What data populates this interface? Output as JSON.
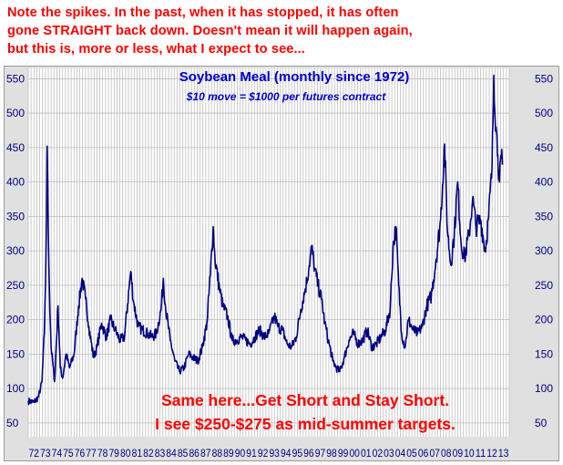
{
  "note": {
    "lines": [
      "Note the spikes. In the past, when it has stopped, it has often",
      "gone STRAIGHT back down. Doesn't mean it will happen again,",
      "but this is, more or less, what I expect to see..."
    ]
  },
  "chart_data": {
    "type": "line",
    "title": "Soybean Meal (monthly since 1972)",
    "subtitle": "$10 move = $1000 per futures contract",
    "annotations": [
      "Same here...Get Short and Stay Short.",
      "I see $250-$275 as mid-summer targets."
    ],
    "y_ticks": [
      50,
      100,
      150,
      200,
      250,
      300,
      350,
      400,
      450,
      500,
      550
    ],
    "ylim": [
      30,
      565
    ],
    "xlim": [
      1972,
      2014
    ],
    "x_tick_labels": [
      "72",
      "73",
      "74",
      "75",
      "76",
      "77",
      "78",
      "79",
      "80",
      "81",
      "82",
      "83",
      "84",
      "85",
      "86",
      "87",
      "88",
      "89",
      "90",
      "91",
      "92",
      "93",
      "94",
      "95",
      "96",
      "97",
      "98",
      "99",
      "00",
      "01",
      "02",
      "03",
      "04",
      "05",
      "06",
      "07",
      "08",
      "09",
      "10",
      "11",
      "12",
      "13"
    ],
    "grid": true,
    "series": [
      {
        "color": "#000080",
        "points": [
          [
            1972.0,
            82
          ],
          [
            1972.5,
            80
          ],
          [
            1972.9,
            88
          ],
          [
            1973.2,
            110
          ],
          [
            1973.4,
            180
          ],
          [
            1973.5,
            250
          ],
          [
            1973.6,
            350
          ],
          [
            1973.65,
            452
          ],
          [
            1973.75,
            330
          ],
          [
            1973.85,
            240
          ],
          [
            1974.0,
            160
          ],
          [
            1974.3,
            110
          ],
          [
            1974.6,
            220
          ],
          [
            1974.8,
            130
          ],
          [
            1975.0,
            115
          ],
          [
            1975.3,
            150
          ],
          [
            1975.6,
            130
          ],
          [
            1976.0,
            150
          ],
          [
            1976.4,
            220
          ],
          [
            1976.7,
            260
          ],
          [
            1977.0,
            230
          ],
          [
            1977.3,
            190
          ],
          [
            1977.7,
            145
          ],
          [
            1978.0,
            160
          ],
          [
            1978.4,
            195
          ],
          [
            1978.8,
            175
          ],
          [
            1979.2,
            200
          ],
          [
            1979.6,
            185
          ],
          [
            1980.0,
            170
          ],
          [
            1980.4,
            175
          ],
          [
            1980.8,
            245
          ],
          [
            1980.95,
            270
          ],
          [
            1981.2,
            225
          ],
          [
            1981.6,
            190
          ],
          [
            1982.0,
            185
          ],
          [
            1982.4,
            180
          ],
          [
            1982.8,
            175
          ],
          [
            1983.2,
            180
          ],
          [
            1983.6,
            215
          ],
          [
            1983.8,
            260
          ],
          [
            1984.0,
            215
          ],
          [
            1984.4,
            170
          ],
          [
            1984.8,
            140
          ],
          [
            1985.2,
            125
          ],
          [
            1985.6,
            130
          ],
          [
            1986.0,
            150
          ],
          [
            1986.4,
            145
          ],
          [
            1986.8,
            140
          ],
          [
            1987.2,
            160
          ],
          [
            1987.6,
            195
          ],
          [
            1987.9,
            265
          ],
          [
            1988.15,
            335
          ],
          [
            1988.3,
            290
          ],
          [
            1988.7,
            245
          ],
          [
            1989.0,
            220
          ],
          [
            1989.4,
            205
          ],
          [
            1989.8,
            170
          ],
          [
            1990.2,
            170
          ],
          [
            1990.6,
            175
          ],
          [
            1991.0,
            170
          ],
          [
            1991.4,
            165
          ],
          [
            1991.8,
            175
          ],
          [
            1992.2,
            185
          ],
          [
            1992.6,
            175
          ],
          [
            1993.0,
            180
          ],
          [
            1993.5,
            205
          ],
          [
            1993.8,
            190
          ],
          [
            1994.2,
            185
          ],
          [
            1994.6,
            165
          ],
          [
            1995.0,
            160
          ],
          [
            1995.4,
            175
          ],
          [
            1995.8,
            215
          ],
          [
            1996.2,
            245
          ],
          [
            1996.5,
            275
          ],
          [
            1996.75,
            305
          ],
          [
            1997.0,
            275
          ],
          [
            1997.3,
            250
          ],
          [
            1997.6,
            230
          ],
          [
            1997.9,
            195
          ],
          [
            1998.2,
            170
          ],
          [
            1998.6,
            140
          ],
          [
            1998.9,
            130
          ],
          [
            1999.2,
            125
          ],
          [
            1999.6,
            145
          ],
          [
            2000.0,
            170
          ],
          [
            2000.4,
            180
          ],
          [
            2000.8,
            165
          ],
          [
            2001.2,
            170
          ],
          [
            2001.6,
            185
          ],
          [
            2002.0,
            160
          ],
          [
            2002.4,
            165
          ],
          [
            2002.8,
            175
          ],
          [
            2003.2,
            185
          ],
          [
            2003.6,
            215
          ],
          [
            2003.85,
            305
          ],
          [
            2004.1,
            335
          ],
          [
            2004.35,
            250
          ],
          [
            2004.6,
            180
          ],
          [
            2004.9,
            160
          ],
          [
            2005.2,
            200
          ],
          [
            2005.6,
            185
          ],
          [
            2006.0,
            180
          ],
          [
            2006.4,
            190
          ],
          [
            2006.8,
            220
          ],
          [
            2007.2,
            235
          ],
          [
            2007.6,
            285
          ],
          [
            2008.0,
            345
          ],
          [
            2008.35,
            455
          ],
          [
            2008.6,
            330
          ],
          [
            2008.9,
            280
          ],
          [
            2009.2,
            325
          ],
          [
            2009.5,
            400
          ],
          [
            2009.8,
            310
          ],
          [
            2010.1,
            290
          ],
          [
            2010.5,
            325
          ],
          [
            2010.8,
            375
          ],
          [
            2011.1,
            335
          ],
          [
            2011.5,
            345
          ],
          [
            2011.9,
            300
          ],
          [
            2012.2,
            350
          ],
          [
            2012.5,
            420
          ],
          [
            2012.65,
            555
          ],
          [
            2012.85,
            480
          ],
          [
            2013.0,
            440
          ],
          [
            2013.15,
            400
          ],
          [
            2013.3,
            435
          ],
          [
            2013.4,
            425
          ]
        ]
      }
    ]
  }
}
